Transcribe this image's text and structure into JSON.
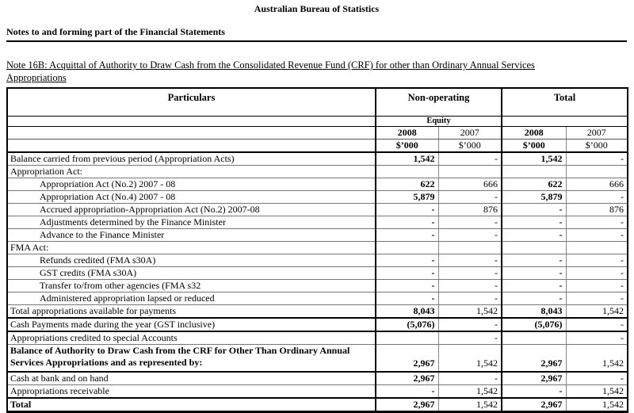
{
  "header": {
    "org_title": "Australian Bureau of Statistics",
    "section_heading": "Notes to and forming part of the Financial Statements",
    "note_title_line1": "Note 16B: Acquittal of Authority to Draw Cash from the Consolidated Revenue Fund (CRF) for other than Ordinary Annual Services",
    "note_title_line2": "Appropriations"
  },
  "table": {
    "header": {
      "particulars": "Particulars",
      "group_non_operating": "Non-operating",
      "group_total": "Total",
      "equity": "Equity",
      "years": [
        "2008",
        "2007",
        "2008",
        "2007"
      ],
      "units": [
        "$’000",
        "$’000",
        "$’000",
        "$’000"
      ]
    },
    "rows": [
      {
        "label": "Balance carried from previous period (Appropriation Acts)",
        "values": [
          "1,542",
          "-",
          "1,542",
          "-"
        ]
      },
      {
        "label": "Appropriation Act:",
        "values": [
          "",
          "",
          "",
          ""
        ]
      },
      {
        "label": "Appropriation Act (No.2) 2007 - 08",
        "values": [
          "622",
          "666",
          "622",
          "666"
        ]
      },
      {
        "label": "Appropriation Act (No.4) 2007 - 08",
        "values": [
          "5,879",
          "-",
          "5,879",
          "-"
        ]
      },
      {
        "label": "Accrued appropriation-Appropriation Act (No.2) 2007-08",
        "values": [
          "-",
          "876",
          "-",
          "876"
        ]
      },
      {
        "label": "Adjustments determined by the Finance Minister",
        "values": [
          "-",
          "-",
          "-",
          "-"
        ]
      },
      {
        "label": "Advance to the Finance Minister",
        "values": [
          "-",
          "-",
          "-",
          "-"
        ]
      },
      {
        "label": "FMA Act:",
        "values": [
          "",
          "",
          "",
          ""
        ]
      },
      {
        "label": "Refunds credited (FMA s30A)",
        "values": [
          "-",
          "-",
          "-",
          "-"
        ]
      },
      {
        "label": "GST credits (FMA s30A)",
        "values": [
          "-",
          "-",
          "-",
          "-"
        ]
      },
      {
        "label": "Transfer to/from other agencies (FMA s32",
        "values": [
          "-",
          "-",
          "-",
          "-"
        ]
      },
      {
        "label": "Administered appropriation lapsed or reduced",
        "values": [
          "-",
          "-",
          "-",
          "-"
        ]
      },
      {
        "label": "Total appropriations available for payments",
        "values": [
          "8,043",
          "1,542",
          "8,043",
          "1,542"
        ]
      },
      {
        "label": "Cash Payments made during the year (GST inclusive)",
        "values": [
          "(5,076)",
          "-",
          "(5,076)",
          "-"
        ]
      },
      {
        "label": "Appropriations credited to special Accounts",
        "values": [
          "",
          "-",
          "",
          "-"
        ]
      },
      {
        "label": "Balance of Authority to Draw Cash from the CRF for Other Than Ordinary Annual Services Appropriations and as represented by:",
        "values": [
          "2,967",
          "1,542",
          "2,967",
          "1,542"
        ]
      },
      {
        "label": "Cash at bank and on hand",
        "values": [
          "2,967",
          "-",
          "2,967",
          "-"
        ]
      },
      {
        "label": "Appropriations receivable",
        "values": [
          "-",
          "1,542",
          "-",
          "1,542"
        ]
      },
      {
        "label": "Total",
        "values": [
          "2,967",
          "1,542",
          "2,967",
          "1,542"
        ]
      }
    ]
  }
}
